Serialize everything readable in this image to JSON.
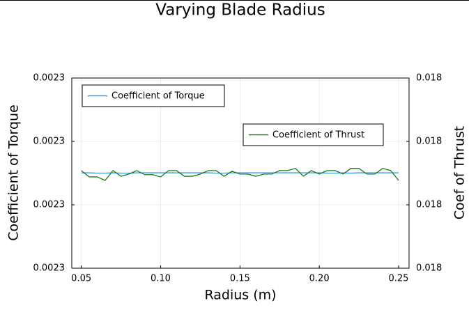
{
  "chart_data": {
    "type": "line",
    "title": "Varying Blade Radius",
    "x_label": "Radius (m)",
    "y_label": "Coefficient of Torque",
    "y2_label": "Coef of Thrust",
    "x": [
      0.05,
      0.055,
      0.06,
      0.065,
      0.07,
      0.075,
      0.08,
      0.085,
      0.09,
      0.095,
      0.1,
      0.105,
      0.11,
      0.115,
      0.12,
      0.125,
      0.13,
      0.135,
      0.14,
      0.145,
      0.15,
      0.155,
      0.16,
      0.165,
      0.17,
      0.175,
      0.18,
      0.185,
      0.19,
      0.195,
      0.2,
      0.205,
      0.21,
      0.215,
      0.22,
      0.225,
      0.23,
      0.235,
      0.24,
      0.245,
      0.25
    ],
    "series": [
      {
        "name": "Coefficient of Torque",
        "color": "#3a9fe0",
        "axis": "y",
        "values": [
          0.00230001,
          0.00230001,
          0.0023,
          0.0023,
          0.00230001,
          0.0023,
          0.0023,
          0.00230001,
          0.00230001,
          0.00230001,
          0.00230001,
          0.00230001,
          0.00230001,
          0.00230001,
          0.00230001,
          0.00230001,
          0.00230001,
          0.0023,
          0.0023,
          0.00230001,
          0.00230001,
          0.00230001,
          0.00230001,
          0.00230001,
          0.00230001,
          0.00230001,
          0.00230001,
          0.00230001,
          0.00230001,
          0.00230001,
          0.00230001,
          0.0023,
          0.0023,
          0.00230001,
          0.0023,
          0.00230001,
          0.00230001,
          0.00230001,
          0.00230001,
          0.00230001,
          0.00230001
        ]
      },
      {
        "name": "Coefficient of Thrust",
        "color": "#1a7a1a",
        "axis": "y2",
        "values": [
          0.0180008,
          0.0179988,
          0.0179988,
          0.0179977,
          0.0180008,
          0.017999,
          0.0179997,
          0.0180008,
          0.0179995,
          0.0179995,
          0.0179988,
          0.0180008,
          0.0180008,
          0.017999,
          0.017999,
          0.0179997,
          0.0180008,
          0.0180008,
          0.017999,
          0.0180006,
          0.0179997,
          0.0179997,
          0.017999,
          0.0179997,
          0.0179997,
          0.0180008,
          0.0180008,
          0.0180015,
          0.017999,
          0.0180008,
          0.0179997,
          0.0180008,
          0.0180008,
          0.0179997,
          0.0180015,
          0.0180015,
          0.0179997,
          0.0179997,
          0.0180015,
          0.0180008,
          0.0179977
        ]
      }
    ],
    "xlim": [
      0.044,
      0.2566
    ],
    "xticks": [
      0.05,
      {
        "value": 0.1,
        "label": "0.10"
      },
      0.15,
      {
        "value": 0.2,
        "label": "0.20"
      },
      0.25
    ],
    "ylim": [
      0.002297,
      0.002303
    ],
    "yticks": [
      {
        "value": 0.002297,
        "label": "0.0023"
      },
      {
        "value": 0.002299,
        "label": "0.0023"
      },
      {
        "value": 0.002301,
        "label": "0.0023"
      },
      {
        "value": 0.002303,
        "label": "0.0023"
      }
    ],
    "y2lim": [
      0.01797,
      0.01803
    ],
    "y2ticks": [
      {
        "value": 0.01797,
        "label": "0.018"
      },
      {
        "value": 0.01799,
        "label": "0.018"
      },
      {
        "value": 0.01801,
        "label": "0.018"
      },
      {
        "value": 0.01803,
        "label": "0.018"
      }
    ],
    "grid": true
  }
}
